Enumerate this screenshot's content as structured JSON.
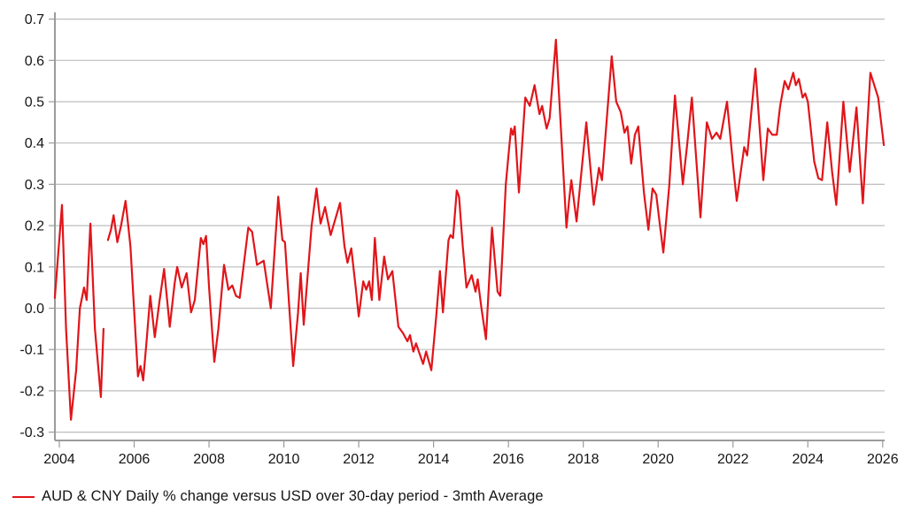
{
  "colors": {
    "background": "#ffffff",
    "grid": "#bdbdbd",
    "axis": "#9b9b9b",
    "text": "#151515",
    "series_red": "#e0151a"
  },
  "chart_data": {
    "type": "line",
    "title": "",
    "xlabel": "",
    "ylabel": "",
    "grid": "horizontal",
    "legend_position": "bottom-left",
    "xlim": [
      2003.88,
      2026.06
    ],
    "ylim": [
      -0.3,
      0.7
    ],
    "x_ticks": [
      {
        "label": "2004",
        "value": 2004
      },
      {
        "label": "2006",
        "value": 2006
      },
      {
        "label": "2008",
        "value": 2008
      },
      {
        "label": "2010",
        "value": 2010
      },
      {
        "label": "2012",
        "value": 2012
      },
      {
        "label": "2014",
        "value": 2014
      },
      {
        "label": "2016",
        "value": 2016
      },
      {
        "label": "2018",
        "value": 2018
      },
      {
        "label": "2020",
        "value": 2020
      },
      {
        "label": "2022",
        "value": 2022
      },
      {
        "label": "2024",
        "value": 2024
      },
      {
        "label": "2026",
        "value": 2026
      }
    ],
    "y_ticks": [
      {
        "label": "0.7",
        "value": 0.7
      },
      {
        "label": "0.6",
        "value": 0.6
      },
      {
        "label": "0.5",
        "value": 0.5
      },
      {
        "label": "0.4",
        "value": 0.4
      },
      {
        "label": "0.3",
        "value": 0.3
      },
      {
        "label": "0.2",
        "value": 0.2
      },
      {
        "label": "0.1",
        "value": 0.1
      },
      {
        "label": "0.0",
        "value": 0.0
      },
      {
        "label": "-0.1",
        "value": -0.1
      },
      {
        "label": "-0.2",
        "value": -0.2
      },
      {
        "label": "-0.3",
        "value": -0.3
      }
    ],
    "series": [
      {
        "name": "AUD & CNY Daily % change versus USD over 30-day period - 3mth Average",
        "color": "#e0151a",
        "points": [
          [
            2003.88,
            0.025
          ],
          [
            2004.07,
            0.25
          ],
          [
            2004.18,
            -0.05
          ],
          [
            2004.31,
            -0.27
          ],
          [
            2004.45,
            -0.15
          ],
          [
            2004.55,
            0.0
          ],
          [
            2004.66,
            0.05
          ],
          [
            2004.73,
            0.02
          ],
          [
            2004.83,
            0.205
          ],
          [
            2004.95,
            -0.05
          ],
          [
            2005.11,
            -0.215
          ],
          [
            2005.18,
            -0.05
          ],
          null,
          [
            2005.3,
            0.165
          ],
          [
            2005.38,
            0.19
          ],
          [
            2005.45,
            0.225
          ],
          [
            2005.55,
            0.16
          ],
          [
            2005.65,
            0.2
          ],
          [
            2005.77,
            0.26
          ],
          [
            2005.9,
            0.15
          ],
          [
            2006.1,
            -0.165
          ],
          [
            2006.17,
            -0.14
          ],
          [
            2006.24,
            -0.175
          ],
          [
            2006.33,
            -0.08
          ],
          [
            2006.43,
            0.03
          ],
          [
            2006.55,
            -0.07
          ],
          [
            2006.68,
            0.02
          ],
          [
            2006.8,
            0.095
          ],
          [
            2006.95,
            -0.045
          ],
          [
            2007.08,
            0.06
          ],
          [
            2007.15,
            0.1
          ],
          [
            2007.27,
            0.05
          ],
          [
            2007.4,
            0.085
          ],
          [
            2007.52,
            -0.01
          ],
          [
            2007.62,
            0.02
          ],
          [
            2007.78,
            0.17
          ],
          [
            2007.85,
            0.155
          ],
          [
            2007.92,
            0.175
          ],
          [
            2008.0,
            0.05
          ],
          [
            2008.14,
            -0.13
          ],
          [
            2008.25,
            -0.05
          ],
          [
            2008.4,
            0.105
          ],
          [
            2008.52,
            0.045
          ],
          [
            2008.62,
            0.055
          ],
          [
            2008.72,
            0.03
          ],
          [
            2008.82,
            0.025
          ],
          [
            2009.05,
            0.195
          ],
          [
            2009.15,
            0.185
          ],
          [
            2009.28,
            0.105
          ],
          [
            2009.46,
            0.115
          ],
          [
            2009.65,
            0.0
          ],
          [
            2009.85,
            0.27
          ],
          [
            2009.96,
            0.165
          ],
          [
            2010.03,
            0.16
          ],
          [
            2010.25,
            -0.14
          ],
          [
            2010.38,
            -0.01
          ],
          [
            2010.45,
            0.085
          ],
          [
            2010.53,
            -0.04
          ],
          [
            2010.74,
            0.2
          ],
          [
            2010.87,
            0.29
          ],
          [
            2010.98,
            0.205
          ],
          [
            2011.1,
            0.245
          ],
          [
            2011.25,
            0.177
          ],
          [
            2011.5,
            0.255
          ],
          [
            2011.62,
            0.15
          ],
          [
            2011.7,
            0.11
          ],
          [
            2011.8,
            0.145
          ],
          [
            2011.92,
            0.05
          ],
          [
            2012.0,
            -0.02
          ],
          [
            2012.12,
            0.065
          ],
          [
            2012.2,
            0.045
          ],
          [
            2012.28,
            0.065
          ],
          [
            2012.35,
            0.02
          ],
          [
            2012.43,
            0.17
          ],
          [
            2012.55,
            0.02
          ],
          [
            2012.68,
            0.125
          ],
          [
            2012.78,
            0.07
          ],
          [
            2012.9,
            0.09
          ],
          [
            2013.06,
            -0.045
          ],
          [
            2013.18,
            -0.06
          ],
          [
            2013.3,
            -0.08
          ],
          [
            2013.37,
            -0.065
          ],
          [
            2013.46,
            -0.105
          ],
          [
            2013.53,
            -0.085
          ],
          [
            2013.72,
            -0.135
          ],
          [
            2013.8,
            -0.105
          ],
          [
            2013.94,
            -0.15
          ],
          [
            2014.07,
            -0.02
          ],
          [
            2014.17,
            0.09
          ],
          [
            2014.25,
            -0.01
          ],
          [
            2014.4,
            0.165
          ],
          [
            2014.45,
            0.177
          ],
          [
            2014.52,
            0.17
          ],
          [
            2014.62,
            0.285
          ],
          [
            2014.68,
            0.27
          ],
          [
            2014.78,
            0.15
          ],
          [
            2014.88,
            0.05
          ],
          [
            2015.02,
            0.08
          ],
          [
            2015.12,
            0.04
          ],
          [
            2015.18,
            0.07
          ],
          [
            2015.28,
            0.0
          ],
          [
            2015.4,
            -0.075
          ],
          [
            2015.56,
            0.195
          ],
          [
            2015.71,
            0.04
          ],
          [
            2015.78,
            0.03
          ],
          [
            2015.85,
            0.15
          ],
          [
            2015.93,
            0.3
          ],
          [
            2016.0,
            0.37
          ],
          [
            2016.07,
            0.435
          ],
          [
            2016.12,
            0.42
          ],
          [
            2016.17,
            0.44
          ],
          [
            2016.28,
            0.28
          ],
          [
            2016.45,
            0.51
          ],
          [
            2016.57,
            0.49
          ],
          [
            2016.7,
            0.54
          ],
          [
            2016.83,
            0.47
          ],
          [
            2016.9,
            0.49
          ],
          [
            2017.02,
            0.435
          ],
          [
            2017.1,
            0.46
          ],
          [
            2017.27,
            0.65
          ],
          [
            2017.55,
            0.195
          ],
          [
            2017.62,
            0.26
          ],
          [
            2017.68,
            0.31
          ],
          [
            2017.82,
            0.21
          ],
          [
            2018.08,
            0.45
          ],
          [
            2018.28,
            0.25
          ],
          [
            2018.42,
            0.34
          ],
          [
            2018.5,
            0.31
          ],
          [
            2018.76,
            0.61
          ],
          [
            2018.88,
            0.5
          ],
          [
            2019.0,
            0.475
          ],
          [
            2019.1,
            0.425
          ],
          [
            2019.18,
            0.44
          ],
          [
            2019.28,
            0.35
          ],
          [
            2019.38,
            0.42
          ],
          [
            2019.47,
            0.44
          ],
          [
            2019.62,
            0.28
          ],
          [
            2019.74,
            0.19
          ],
          [
            2019.85,
            0.29
          ],
          [
            2019.95,
            0.275
          ],
          [
            2020.05,
            0.2
          ],
          [
            2020.14,
            0.135
          ],
          [
            2020.3,
            0.3
          ],
          [
            2020.45,
            0.515
          ],
          [
            2020.66,
            0.3
          ],
          [
            2020.78,
            0.4
          ],
          [
            2020.9,
            0.51
          ],
          [
            2021.02,
            0.36
          ],
          [
            2021.13,
            0.22
          ],
          [
            2021.3,
            0.45
          ],
          [
            2021.44,
            0.41
          ],
          [
            2021.56,
            0.425
          ],
          [
            2021.66,
            0.41
          ],
          [
            2021.84,
            0.5
          ],
          [
            2022.0,
            0.35
          ],
          [
            2022.1,
            0.26
          ],
          [
            2022.3,
            0.39
          ],
          [
            2022.38,
            0.37
          ],
          [
            2022.6,
            0.58
          ],
          [
            2022.81,
            0.31
          ],
          [
            2022.93,
            0.435
          ],
          [
            2023.05,
            0.42
          ],
          [
            2023.17,
            0.42
          ],
          [
            2023.26,
            0.49
          ],
          [
            2023.38,
            0.55
          ],
          [
            2023.48,
            0.53
          ],
          [
            2023.61,
            0.57
          ],
          [
            2023.68,
            0.54
          ],
          [
            2023.76,
            0.555
          ],
          [
            2023.86,
            0.51
          ],
          [
            2023.93,
            0.52
          ],
          [
            2024.0,
            0.5
          ],
          [
            2024.17,
            0.355
          ],
          [
            2024.28,
            0.315
          ],
          [
            2024.38,
            0.31
          ],
          [
            2024.52,
            0.45
          ],
          [
            2024.65,
            0.33
          ],
          [
            2024.76,
            0.25
          ],
          [
            2024.95,
            0.5
          ],
          [
            2025.12,
            0.33
          ],
          [
            2025.3,
            0.486
          ],
          [
            2025.47,
            0.254
          ],
          [
            2025.67,
            0.57
          ],
          [
            2025.79,
            0.536
          ],
          [
            2025.88,
            0.51
          ],
          [
            2026.03,
            0.395
          ]
        ]
      }
    ]
  },
  "legend": {
    "label": "AUD & CNY Daily % change versus USD over 30-day period - 3mth Average"
  }
}
